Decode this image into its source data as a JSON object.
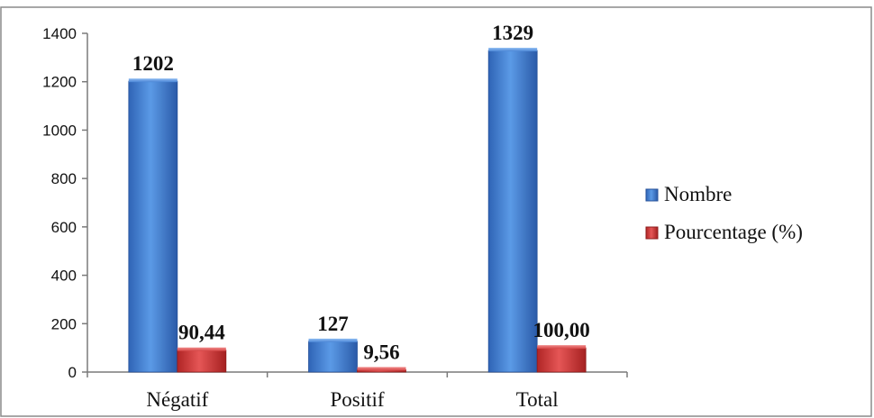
{
  "chart_data": {
    "type": "bar",
    "title": "",
    "xlabel": "",
    "ylabel": "",
    "categories": [
      "Négatif",
      "Positif",
      "Total"
    ],
    "series": [
      {
        "name": "Nombre",
        "values": [
          1202,
          127,
          1329
        ],
        "labels": [
          "1202",
          "127",
          "1329"
        ],
        "color": "#3f7fd1"
      },
      {
        "name": "Pourcentage (%)",
        "values": [
          90.44,
          9.56,
          100.0
        ],
        "labels": [
          "90,44",
          "9,56",
          "100,00"
        ],
        "color": "#d43a3a"
      }
    ],
    "ylim": [
      0,
      1400
    ],
    "yticks": [
      0,
      200,
      400,
      600,
      800,
      1000,
      1200,
      1400
    ],
    "grid": false,
    "legend_position": "right"
  }
}
